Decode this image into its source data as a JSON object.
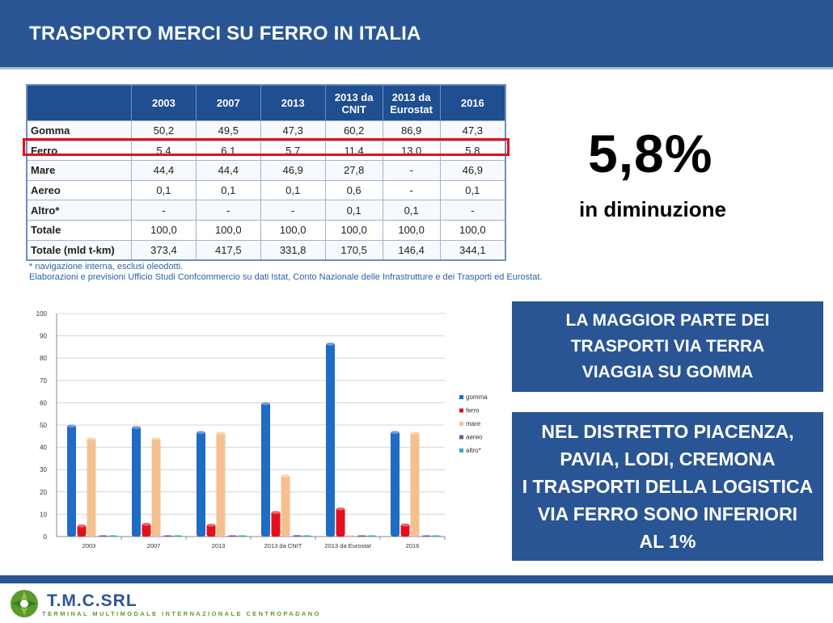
{
  "header": {
    "title": "TRASPORTO MERCI SU FERRO IN ITALIA"
  },
  "table": {
    "columns": [
      "",
      "2003",
      "2007",
      "2013",
      "2013 da CNIT",
      "2013 da Eurostat",
      "2016"
    ],
    "rows": [
      [
        "Gomma",
        "50,2",
        "49,5",
        "47,3",
        "60,2",
        "86,9",
        "47,3"
      ],
      [
        "Ferro",
        "5,4",
        "6,1",
        "5,7",
        "11,4",
        "13,0",
        "5,8"
      ],
      [
        "Mare",
        "44,4",
        "44,4",
        "46,9",
        "27,8",
        "-",
        "46,9"
      ],
      [
        "Aereo",
        "0,1",
        "0,1",
        "0,1",
        "0,6",
        "-",
        "0,1"
      ],
      [
        "Altro*",
        "-",
        "-",
        "-",
        "0,1",
        "0,1",
        "-"
      ],
      [
        "Totale",
        "100,0",
        "100,0",
        "100,0",
        "100,0",
        "100,0",
        "100,0"
      ],
      [
        "Totale (mld t-km)",
        "373,4",
        "417,5",
        "331,8",
        "170,5",
        "146,4",
        "344,1"
      ]
    ],
    "highlight_color": "#e3101c"
  },
  "notes": {
    "line1": "* navigazione interna, esclusi oleodotti.",
    "line2": "Elaborazioni e previsioni Ufficio Studi Confcommercio su dati Istat, Conto Nazionale delle Infrastrutture e dei Trasporti ed Eurostat."
  },
  "stat": {
    "value": "5,8%",
    "label": "in diminuzione"
  },
  "box1": {
    "lines": [
      "LA MAGGIOR PARTE DEI",
      "TRASPORTI VIA TERRA",
      "VIAGGIA SU GOMMA"
    ]
  },
  "box2": {
    "lines": [
      "NEL DISTRETTO PIACENZA,",
      "PAVIA, LODI, CREMONA",
      "I TRASPORTI DELLA LOGISTICA",
      "VIA FERRO SONO INFERIORI",
      "AL 1%"
    ]
  },
  "chart_data": {
    "type": "bar",
    "categories": [
      "2003",
      "2007",
      "2013",
      "2013 da CNIT",
      "2013 da Eurostat",
      "2016"
    ],
    "series": [
      {
        "name": "gomma",
        "values": [
          50.2,
          49.5,
          47.3,
          60.2,
          86.9,
          47.3
        ],
        "color": "#1f6cc4"
      },
      {
        "name": "ferro",
        "values": [
          5.4,
          6.1,
          5.7,
          11.4,
          13.0,
          5.8
        ],
        "color": "#e3101c"
      },
      {
        "name": "mare",
        "values": [
          44.4,
          44.4,
          46.9,
          27.8,
          0,
          46.9
        ],
        "color": "#f5c08f"
      },
      {
        "name": "aereo",
        "values": [
          0.1,
          0.1,
          0.1,
          0.6,
          0,
          0.1
        ],
        "color": "#7b4fa6"
      },
      {
        "name": "altro*",
        "values": [
          0,
          0,
          0,
          0.1,
          0.1,
          0
        ],
        "color": "#3aa6c9"
      }
    ],
    "yticks": [
      "0",
      "10",
      "20",
      "30",
      "40",
      "50",
      "60",
      "70",
      "80",
      "90",
      "100"
    ],
    "ylim": [
      0,
      100
    ],
    "grid": true,
    "legend": "right"
  },
  "footer": {
    "logo_text": "T.M.C.SRL",
    "logo_subtitle": "TERMINAL MULTIMODALE INTERNAZIONALE CENTROPADANO"
  }
}
